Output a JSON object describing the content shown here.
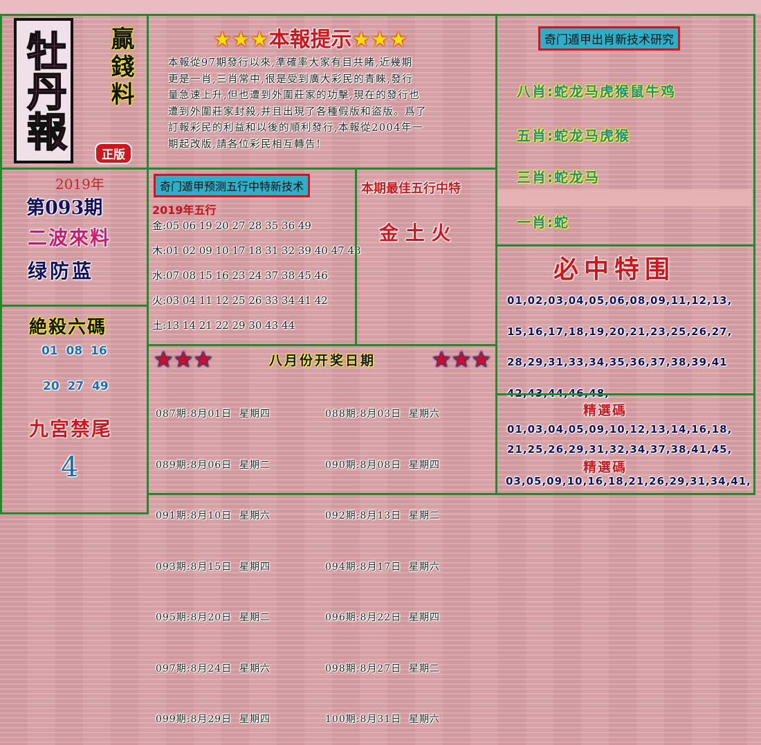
{
  "logo": {
    "title": "牡丹報",
    "side": "贏錢料",
    "badge": "正版"
  },
  "left": {
    "year": "2019年",
    "issue": "第093期",
    "wave_title": "二波來料",
    "wave_value": "绿防蓝",
    "kill_title": "絶殺六碼",
    "kill_rows": [
      "01  08  16",
      "20  27  49"
    ],
    "tail_title": "九宮禁尾",
    "tail_value": "4"
  },
  "notice": {
    "stars": "★★★",
    "title": "本報提示",
    "lines": [
      "本報從97期發行以來,準確率大家有目共睹,近幾期",
      "更是一肖,三肖常中,很是受到廣大彩民的青睞,發行",
      "量急速上升,但也遭到外圍莊家的功擊,現在的發行也",
      "遭到外圍莊家封殺,并且出現了各種假版和盜版。爲了",
      "訂報彩民的利益和以後的順利發行,本報從2004年一",
      "期起改版,請各位彩民相互轉告!"
    ]
  },
  "wuxing": {
    "banner": "奇门遁甲预测五行中特新技术",
    "subtitle": "2019年五行",
    "rows": [
      "金:05 06 19 20 27 28 35 36 49",
      "木:01 02 09 10 17 18 31 32 39 40 47 48",
      "水:07 08 15 16 23 24 37 38 45 46",
      "火:03 04 11 12 25 26 33 34 41 42",
      "土:13 14 21 22 29 30 43 44"
    ]
  },
  "best": {
    "title": "本期最佳五行中特",
    "value": "金 土 火"
  },
  "schedule": {
    "stars": "★★★",
    "title": "八月份开奖日期",
    "rows": [
      [
        "087期:8月01日  星期四",
        "088期:8月03日  星期六"
      ],
      [
        "089期:8月06日  星期二",
        "090期:8月08日  星期四"
      ],
      [
        "091期:8月10日  星期六",
        "092期:8月13日  星期二"
      ],
      [
        "093期:8月15日  星期四",
        "094期:8月17日  星期六"
      ],
      [
        "095期:8月20日  星期二",
        "096期:8月22日  星期四"
      ],
      [
        "097期:8月24日  星期六",
        "098期:8月27日  星期二"
      ],
      [
        "099期:8月29日  星期四",
        "100期:8月31日  星期六"
      ]
    ]
  },
  "zodiac": {
    "banner": "奇门遁甲出肖新技术研究",
    "rows": [
      "八肖:蛇龙马虎猴鼠牛鸡",
      "五肖:蛇龙马虎猴",
      "三肖:蛇龙马",
      "一肖:蛇"
    ]
  },
  "special": {
    "title": "必中特围",
    "rows": [
      "01,02,03,04,05,06,08,09,11,12,13,",
      "15,16,17,18,19,20,21,23,25,26,27,",
      "28,29,31,33,34,35,36,37,38,39,41",
      "42,43,44,46,48,"
    ]
  },
  "selected": {
    "title1": "精選碼",
    "rows1": [
      "01,03,04,05,09,10,12,13,14,16,18,",
      "21,25,26,29,31,32,34,37,38,41,45,"
    ],
    "title2": "精選碼",
    "rows2": [
      "03,05,09,10,16,18,21,26,29,31,34,41,"
    ]
  },
  "colors": {
    "border": "#1d8a2c",
    "red": "#d4141a",
    "navy": "#101060",
    "banner": "#2ab0c8"
  }
}
